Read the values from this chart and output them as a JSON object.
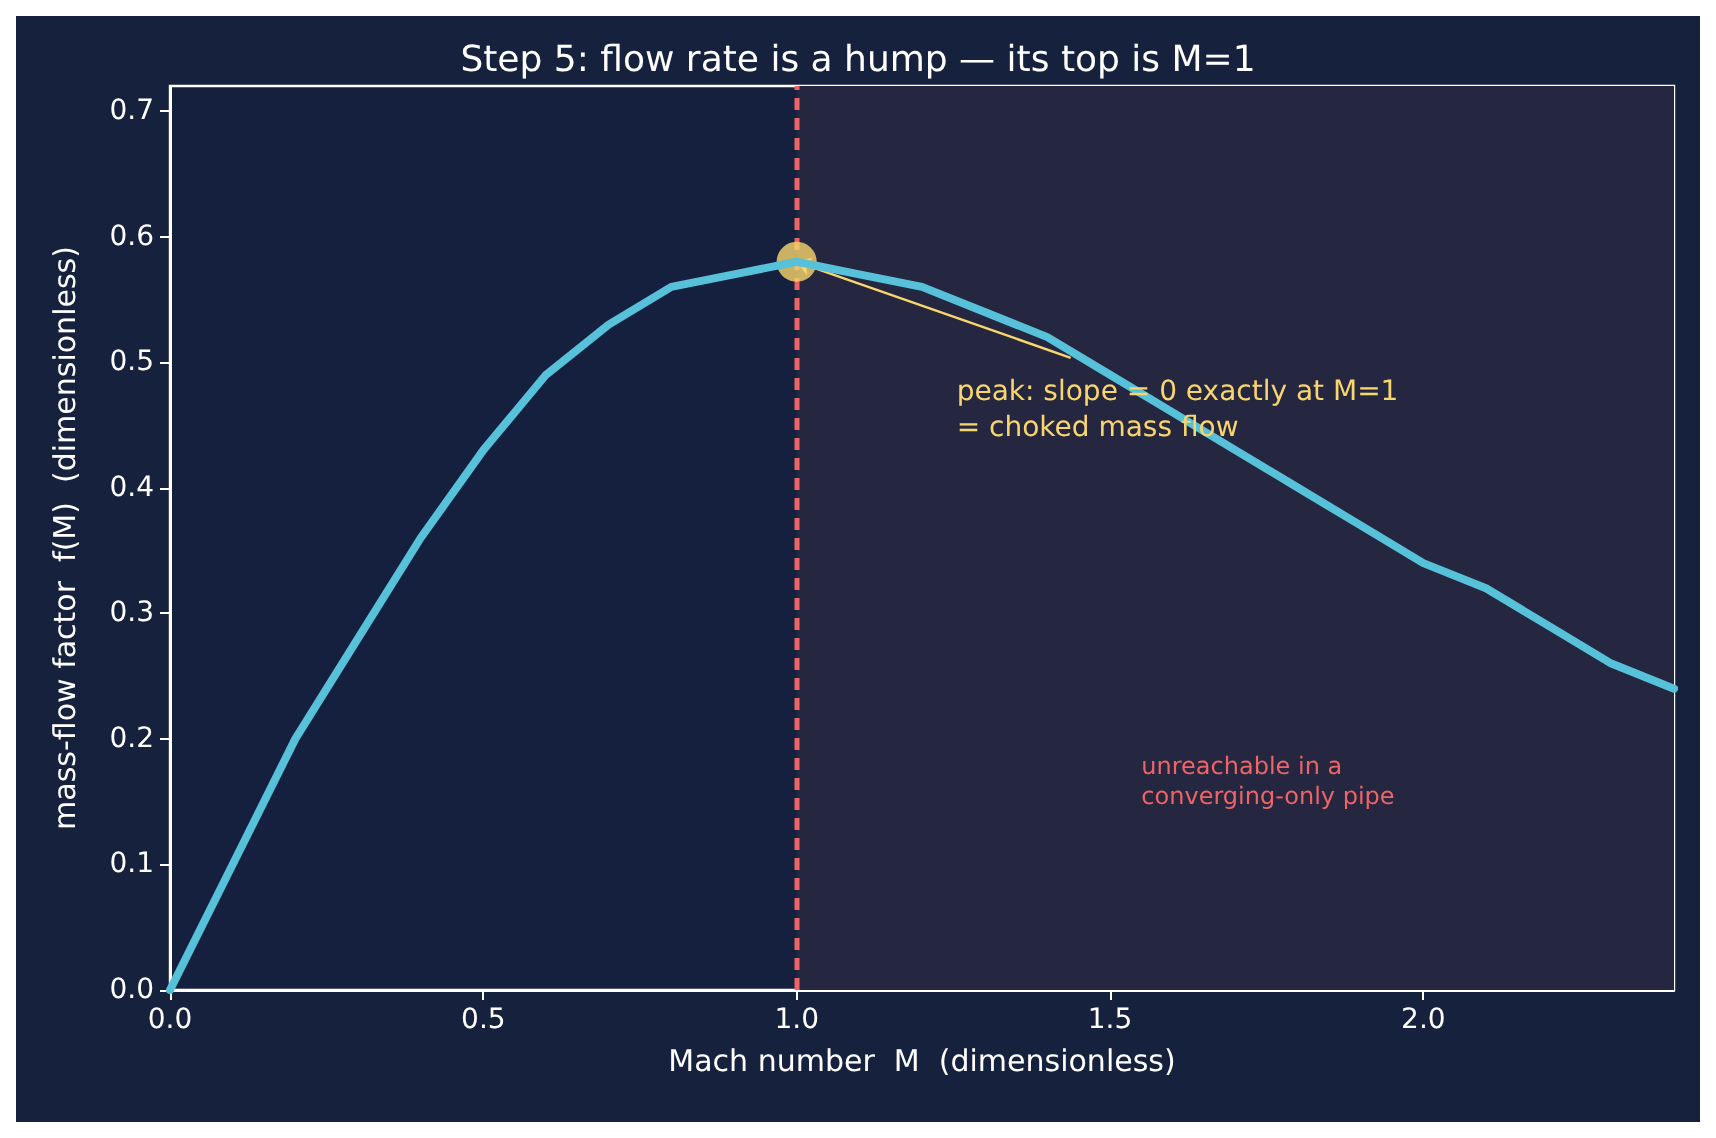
{
  "chart_data": {
    "type": "line",
    "title": "Step 5: flow rate is a hump — its top is M=1",
    "xlabel": "Mach number  M  (dimensionless)",
    "ylabel": "mass-flow factor  f(M)  (dimensionless)",
    "xlim": [
      0,
      2.4
    ],
    "ylim": [
      0,
      0.72
    ],
    "xticks": [
      {
        "value": 0,
        "label": "0.0"
      },
      {
        "value": 0.5,
        "label": "0.5"
      },
      {
        "value": 1,
        "label": "1.0"
      },
      {
        "value": 1.5,
        "label": "1.5"
      },
      {
        "value": 2,
        "label": "2.0"
      }
    ],
    "yticks": [
      {
        "value": 0,
        "label": "0.0"
      },
      {
        "value": 0.1,
        "label": "0.1"
      },
      {
        "value": 0.2,
        "label": "0.2"
      },
      {
        "value": 0.3,
        "label": "0.3"
      },
      {
        "value": 0.4,
        "label": "0.4"
      },
      {
        "value": 0.5,
        "label": "0.5"
      },
      {
        "value": 0.6,
        "label": "0.6"
      },
      {
        "value": 0.7,
        "label": "0.7"
      }
    ],
    "grid": false,
    "line_style": "solid",
    "series": [
      {
        "marker": "none",
        "color": "#56c1d9",
        "x": [
          0,
          0.1,
          0.2,
          0.3,
          0.4,
          0.5,
          0.6,
          0.7,
          0.8,
          0.9,
          1.0,
          1.1,
          1.2,
          1.3,
          1.4,
          1.5,
          1.6,
          1.7,
          1.8,
          1.9,
          2.0,
          2.1,
          2.2,
          2.3,
          2.4
        ],
        "values": [
          0,
          0.1,
          0.2,
          0.28,
          0.36,
          0.43,
          0.49,
          0.53,
          0.56,
          0.57,
          0.58,
          0.57,
          0.56,
          0.54,
          0.52,
          0.49,
          0.46,
          0.43,
          0.4,
          0.37,
          0.34,
          0.32,
          0.29,
          0.26,
          0.24
        ]
      },
      {
        "type": "scatter",
        "marker": "circle",
        "color": "#f8d66d",
        "x": [
          1
        ],
        "values": [
          0.58
        ]
      }
    ],
    "ref_lines": [
      {
        "axis": "x",
        "value": 1,
        "color": "#ee6467",
        "line_style": "dashed"
      }
    ],
    "bands": [
      {
        "axis": "x",
        "from": 1,
        "to": 2.4,
        "color": "#252640",
        "label": "unreachable in a\nconverging-only pipe"
      }
    ],
    "annotations": [
      {
        "text": "peak: slope = 0 exactly at M=1\n= choked mass flow",
        "x": 1,
        "y": 0.58
      }
    ]
  }
}
